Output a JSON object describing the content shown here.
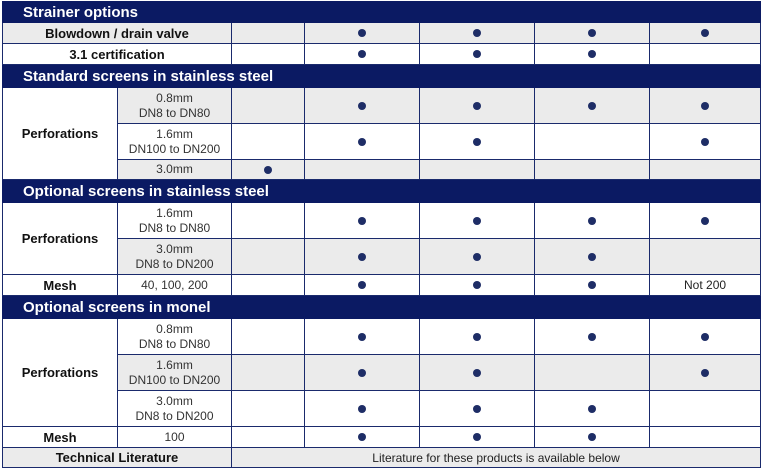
{
  "sections": {
    "strainer_options": "Strainer options",
    "standard_ss": "Standard screens in stainless steel",
    "optional_ss": "Optional screens in stainless steel",
    "optional_monel": "Optional screens in monel"
  },
  "labels": {
    "blowdown": "Blowdown / drain valve",
    "certification": "3.1 certification",
    "perforations": "Perforations",
    "mesh": "Mesh",
    "tech_lit": "Technical Literature"
  },
  "sizes": {
    "s08_a": "0.8mm",
    "s08_b": "DN8 to DN80",
    "s16_a": "1.6mm",
    "s16_b": "DN100 to DN200",
    "s30": "3.0mm",
    "os16_a": "1.6mm",
    "os16_b": "DN8 to DN80",
    "os30_a": "3.0mm",
    "os30_b": "DN8 to DN200",
    "mesh_ss": "40, 100, 200",
    "m08_a": "0.8mm",
    "m08_b": "DN8 to DN80",
    "m16_a": "1.6mm",
    "m16_b": "DN100 to DN200",
    "m30_a": "3.0mm",
    "m30_b": "DN8 to DN200",
    "mesh_monel": "100"
  },
  "notes": {
    "not200": "Not 200",
    "literature": "Literature for these products is available below"
  },
  "colors": {
    "header_bg": "#0b1a63",
    "header_text": "#ffffff",
    "row_alt": "#ebebeb",
    "dot": "#1e2d66"
  }
}
